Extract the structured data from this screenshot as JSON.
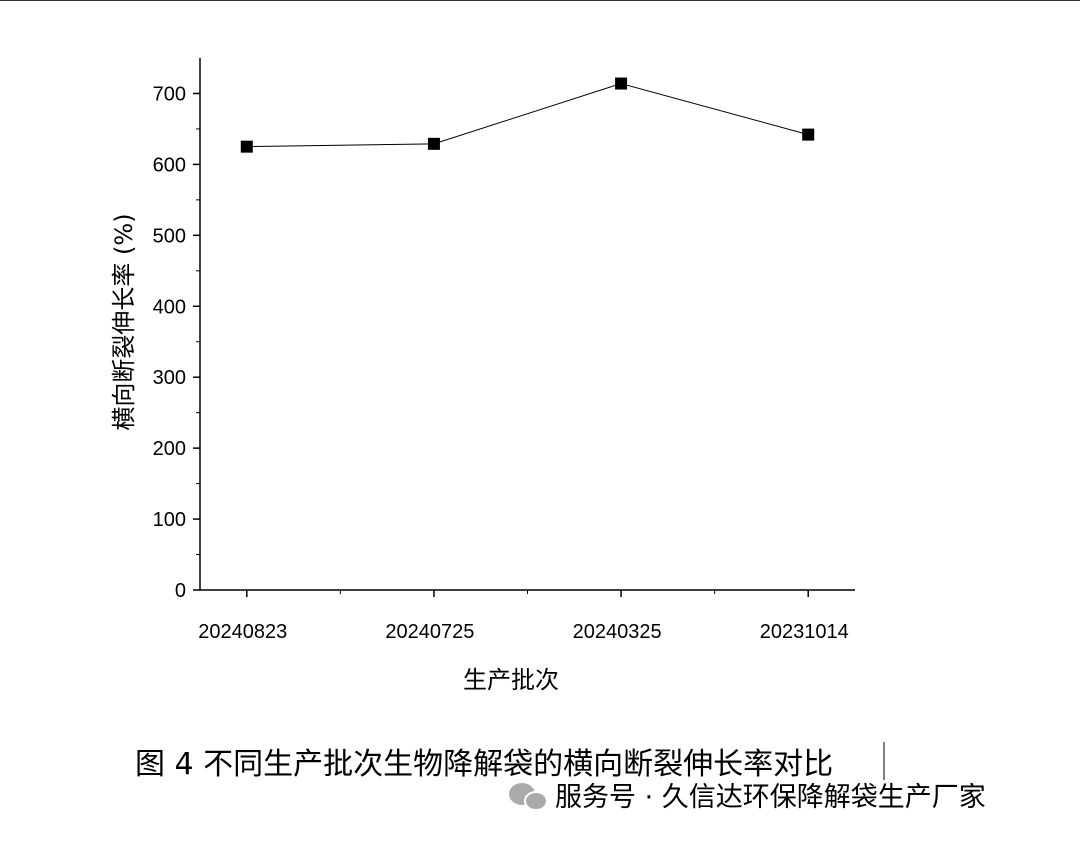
{
  "caption": "图 4  不同生产批次生物降解袋的横向断裂伸长率对比",
  "watermark": "服务号 · 久信达环保降解袋生产厂家",
  "chart_data": {
    "type": "line",
    "x_label": "生产批次",
    "y_label": "横向断裂伸长率 (%)",
    "categories": [
      "20240823",
      "20240725",
      "20240325",
      "20231014"
    ],
    "values": [
      625,
      629,
      714,
      642
    ],
    "color": "#000000",
    "ylim": [
      0,
      750
    ],
    "yticks": [
      0,
      100,
      200,
      300,
      400,
      500,
      600,
      700
    ]
  }
}
